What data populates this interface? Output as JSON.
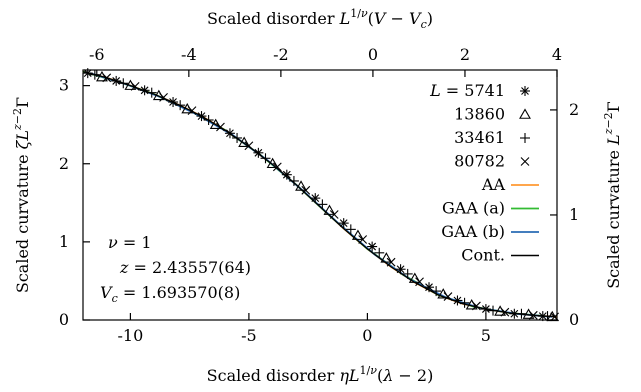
{
  "chart_data": {
    "type": "scatter",
    "title": "",
    "xlabel": "Scaled disorder ηL^{1/ν}(λ − 2)",
    "ylabel": "Scaled curvature ζL^{z−2}Γ",
    "x2label": "Scaled disorder L^{1/ν}(V − V_c)",
    "y2label": "Scaled curvature L^{z−2}Γ",
    "xlim": [
      -12,
      8
    ],
    "ylim": [
      0,
      3.2
    ],
    "x2lim": [
      -6.3,
      4
    ],
    "y2lim": [
      0,
      2.38
    ],
    "xticks": [
      -10,
      -5,
      0,
      5
    ],
    "yticks": [
      0,
      1,
      2,
      3
    ],
    "x2ticks": [
      -6,
      -4,
      -2,
      0,
      2,
      4
    ],
    "y2ticks": [
      0,
      1,
      2
    ],
    "xtick_labels": [
      "-10",
      "-5",
      "0",
      "5"
    ],
    "ytick_labels": [
      "0",
      "1",
      "2",
      "3"
    ],
    "x2tick_labels": [
      "-6",
      "-4",
      "-2",
      "0",
      "2",
      "4"
    ],
    "y2tick_labels": [
      "0",
      "1",
      "2"
    ],
    "grid": false,
    "legend_position": "top-right",
    "series": [
      {
        "name": "L = 5741",
        "marker": "asterisk",
        "color": "#000000",
        "x": [
          -11.8,
          -10.6,
          -9.4,
          -8.2,
          -7.0,
          -5.8,
          -4.6,
          -3.4,
          -2.2,
          -1.0,
          0.2,
          1.4,
          2.6,
          3.8,
          5.0,
          6.2,
          7.4
        ],
        "y": [
          3.16,
          3.06,
          2.94,
          2.79,
          2.61,
          2.39,
          2.14,
          1.86,
          1.56,
          1.24,
          0.94,
          0.65,
          0.42,
          0.25,
          0.14,
          0.08,
          0.05
        ]
      },
      {
        "name": "13860",
        "marker": "triangle",
        "color": "#000000",
        "x": [
          -11.2,
          -10.0,
          -8.8,
          -7.6,
          -6.4,
          -5.2,
          -4.0,
          -2.8,
          -1.6,
          -0.4,
          0.8,
          2.0,
          3.2,
          4.4,
          5.6,
          6.8,
          7.8
        ],
        "y": [
          3.11,
          3.0,
          2.87,
          2.7,
          2.5,
          2.27,
          2.0,
          1.71,
          1.4,
          1.08,
          0.79,
          0.53,
          0.33,
          0.19,
          0.11,
          0.07,
          0.04
        ]
      },
      {
        "name": "33461",
        "marker": "plus",
        "color": "#000000",
        "x": [
          -11.5,
          -10.3,
          -9.1,
          -7.9,
          -6.7,
          -5.5,
          -4.3,
          -3.1,
          -1.9,
          -0.7,
          0.5,
          1.7,
          2.9,
          4.1,
          5.3,
          6.5,
          7.6
        ],
        "y": [
          3.14,
          3.03,
          2.91,
          2.75,
          2.56,
          2.33,
          2.07,
          1.78,
          1.48,
          1.16,
          0.86,
          0.59,
          0.37,
          0.22,
          0.12,
          0.08,
          0.05
        ]
      },
      {
        "name": "80782",
        "marker": "cross",
        "color": "#000000",
        "x": [
          -11.0,
          -9.8,
          -8.6,
          -7.4,
          -6.2,
          -5.0,
          -3.8,
          -2.6,
          -1.4,
          -0.2,
          1.0,
          2.2,
          3.4,
          4.6,
          5.8,
          7.0,
          7.9
        ],
        "y": [
          3.1,
          2.99,
          2.85,
          2.68,
          2.47,
          2.23,
          1.96,
          1.66,
          1.35,
          1.03,
          0.74,
          0.49,
          0.3,
          0.18,
          0.1,
          0.06,
          0.04
        ]
      },
      {
        "name": "AA",
        "marker": "line",
        "color": "#ff9933",
        "x": [
          -12,
          -11,
          -10,
          -9,
          -8,
          -7,
          -6,
          -5,
          -4,
          -3,
          -2,
          -1,
          0,
          1,
          2,
          3,
          4,
          5,
          6,
          7,
          8
        ],
        "y": [
          3.18,
          3.1,
          3.0,
          2.89,
          2.76,
          2.61,
          2.43,
          2.22,
          1.99,
          1.73,
          1.45,
          1.17,
          0.91,
          0.68,
          0.48,
          0.32,
          0.21,
          0.14,
          0.09,
          0.06,
          0.04
        ]
      },
      {
        "name": "GAA (a)",
        "marker": "line",
        "color": "#33bb33",
        "x": [
          -12,
          -10.5,
          -9,
          -7.5,
          -6,
          -4.5,
          -3,
          -1.5,
          0,
          1.5,
          3,
          4.5,
          6,
          7.5
        ],
        "y": [
          3.18,
          3.05,
          2.89,
          2.68,
          2.43,
          2.11,
          1.73,
          1.31,
          0.91,
          0.58,
          0.32,
          0.17,
          0.09,
          0.05
        ]
      },
      {
        "name": "GAA (b)",
        "marker": "line",
        "color": "#2a6bb5",
        "x": [
          -11.7,
          -10.2,
          -8.7,
          -7.2,
          -5.7,
          -4.2,
          -2.7,
          -1.2,
          0.3,
          1.8,
          3.3,
          4.8,
          6.3,
          7.8
        ],
        "y": [
          3.16,
          3.02,
          2.85,
          2.63,
          2.37,
          2.04,
          1.65,
          1.23,
          0.84,
          0.52,
          0.29,
          0.15,
          0.08,
          0.04
        ]
      },
      {
        "name": "Cont.",
        "marker": "line",
        "color": "#000000",
        "x": [
          -12,
          -11,
          -10,
          -9,
          -8,
          -7,
          -6,
          -5,
          -4,
          -3,
          -2,
          -1,
          0,
          1,
          2,
          3,
          4,
          5,
          6,
          7,
          8
        ],
        "y": [
          3.18,
          3.1,
          3.0,
          2.89,
          2.76,
          2.61,
          2.43,
          2.22,
          1.99,
          1.73,
          1.45,
          1.17,
          0.91,
          0.68,
          0.48,
          0.32,
          0.21,
          0.14,
          0.09,
          0.06,
          0.04
        ]
      }
    ],
    "annotations": [
      "ν = 1",
      "z = 2.43557(64)",
      "V_c = 1.693570(8)"
    ]
  }
}
